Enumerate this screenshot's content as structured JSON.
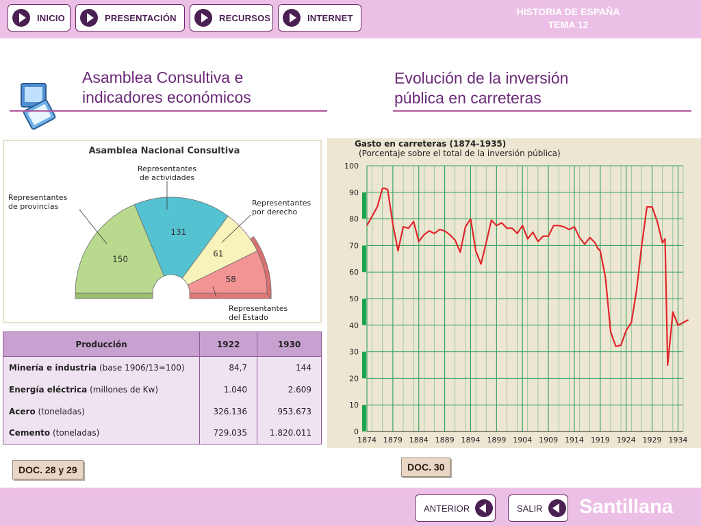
{
  "nav": {
    "items": [
      {
        "label": "INICIO"
      },
      {
        "label": "PRESENTACIÓN"
      },
      {
        "label": "RECURSOS"
      },
      {
        "label": "INTERNET"
      }
    ],
    "header_line1": "HISTORIA DE ESPAÑA",
    "header_line2": "TEMA 12"
  },
  "titles": {
    "left_line1": "Asamblea Consultiva e",
    "left_line2": "indicadores económicos",
    "right_line1": "Evolución de la inversión",
    "right_line2": "pública en carreteras"
  },
  "assembly": {
    "title": "Asamblea Nacional Consultiva",
    "colors": {
      "provincias": "#b9d98e",
      "actividades": "#55c2d1",
      "derecho": "#f7f3ba",
      "estado": "#f29394"
    },
    "segments": [
      {
        "key": "provincias",
        "label_lines": [
          "Representantes",
          "de provincias"
        ],
        "value": 150
      },
      {
        "key": "actividades",
        "label_lines": [
          "Representantes",
          "de actividades"
        ],
        "value": 131
      },
      {
        "key": "derecho",
        "label_lines": [
          "Representantes",
          "por derecho"
        ],
        "value": 61
      },
      {
        "key": "estado",
        "label_lines": [
          "Representantes",
          "del Estado"
        ],
        "value": 58
      }
    ]
  },
  "production": {
    "headers": [
      "Producción",
      "1922",
      "1930"
    ],
    "rows": [
      {
        "name": "Minería e industria",
        "unit": " (base 1906/13=100)",
        "v1922": "84,7",
        "v1930": "144"
      },
      {
        "name": "Energía eléctrica",
        "unit": " (millones de Kw)",
        "v1922": "1.040",
        "v1930": "2.609"
      },
      {
        "name": "Acero",
        "unit": " (toneladas)",
        "v1922": "326.136",
        "v1930": "953.673"
      },
      {
        "name": "Cemento",
        "unit": " (toneladas)",
        "v1922": "729.035",
        "v1930": "1.820.011"
      }
    ]
  },
  "chart_data": {
    "type": "line",
    "title": "Gasto en carreteras (1874-1935)",
    "subtitle": "(Porcentaje sobre el total de la inversión pública)",
    "xlim": [
      1874,
      1935
    ],
    "ylim": [
      0,
      100
    ],
    "xticks": [
      1874,
      1879,
      1884,
      1889,
      1894,
      1899,
      1904,
      1909,
      1914,
      1919,
      1924,
      1929,
      1934
    ],
    "yticks": [
      0,
      10,
      20,
      30,
      40,
      50,
      60,
      70,
      80,
      90,
      100
    ],
    "grid": true,
    "line_color": "#e0262b",
    "grid_color": "#2aa15a",
    "x": [
      1874,
      1875,
      1876,
      1877,
      1877.5,
      1878,
      1879,
      1880,
      1881,
      1882,
      1883,
      1884,
      1885,
      1886,
      1887,
      1888,
      1889,
      1890,
      1891,
      1892,
      1893,
      1894,
      1895,
      1896,
      1897,
      1898,
      1899,
      1900,
      1901,
      1902,
      1903,
      1904,
      1905,
      1906,
      1907,
      1908,
      1909,
      1910,
      1911,
      1912,
      1913,
      1914,
      1915,
      1916,
      1917,
      1918,
      1918.5,
      1919,
      1920,
      1921,
      1922,
      1923,
      1924,
      1925,
      1926,
      1927,
      1928,
      1929,
      1930,
      1931,
      1931.5,
      1932,
      1933,
      1934,
      1935,
      1936
    ],
    "y": [
      77.5,
      81,
      84.5,
      91.5,
      91.5,
      91,
      78,
      68,
      77,
      76.5,
      79,
      71.5,
      74,
      75.5,
      74.5,
      76,
      75.5,
      74,
      72,
      67.5,
      77,
      80,
      68,
      63,
      71,
      79.5,
      77.5,
      78.5,
      76.5,
      76.5,
      74.5,
      77.5,
      72.5,
      75,
      71.5,
      73.5,
      73.5,
      77.5,
      77.5,
      77,
      76,
      77,
      73,
      70.5,
      73,
      71,
      69,
      68,
      58,
      37.5,
      32,
      32.5,
      38,
      41,
      53,
      70,
      84.5,
      84.5,
      79,
      71,
      72.5,
      25,
      45,
      40,
      41,
      42
    ]
  },
  "doc_labels": {
    "left": "DOC. 28 y 29",
    "right": "DOC. 30"
  },
  "footer": {
    "prev": "ANTERIOR",
    "exit": "SALIR",
    "brand": "Santillana"
  }
}
